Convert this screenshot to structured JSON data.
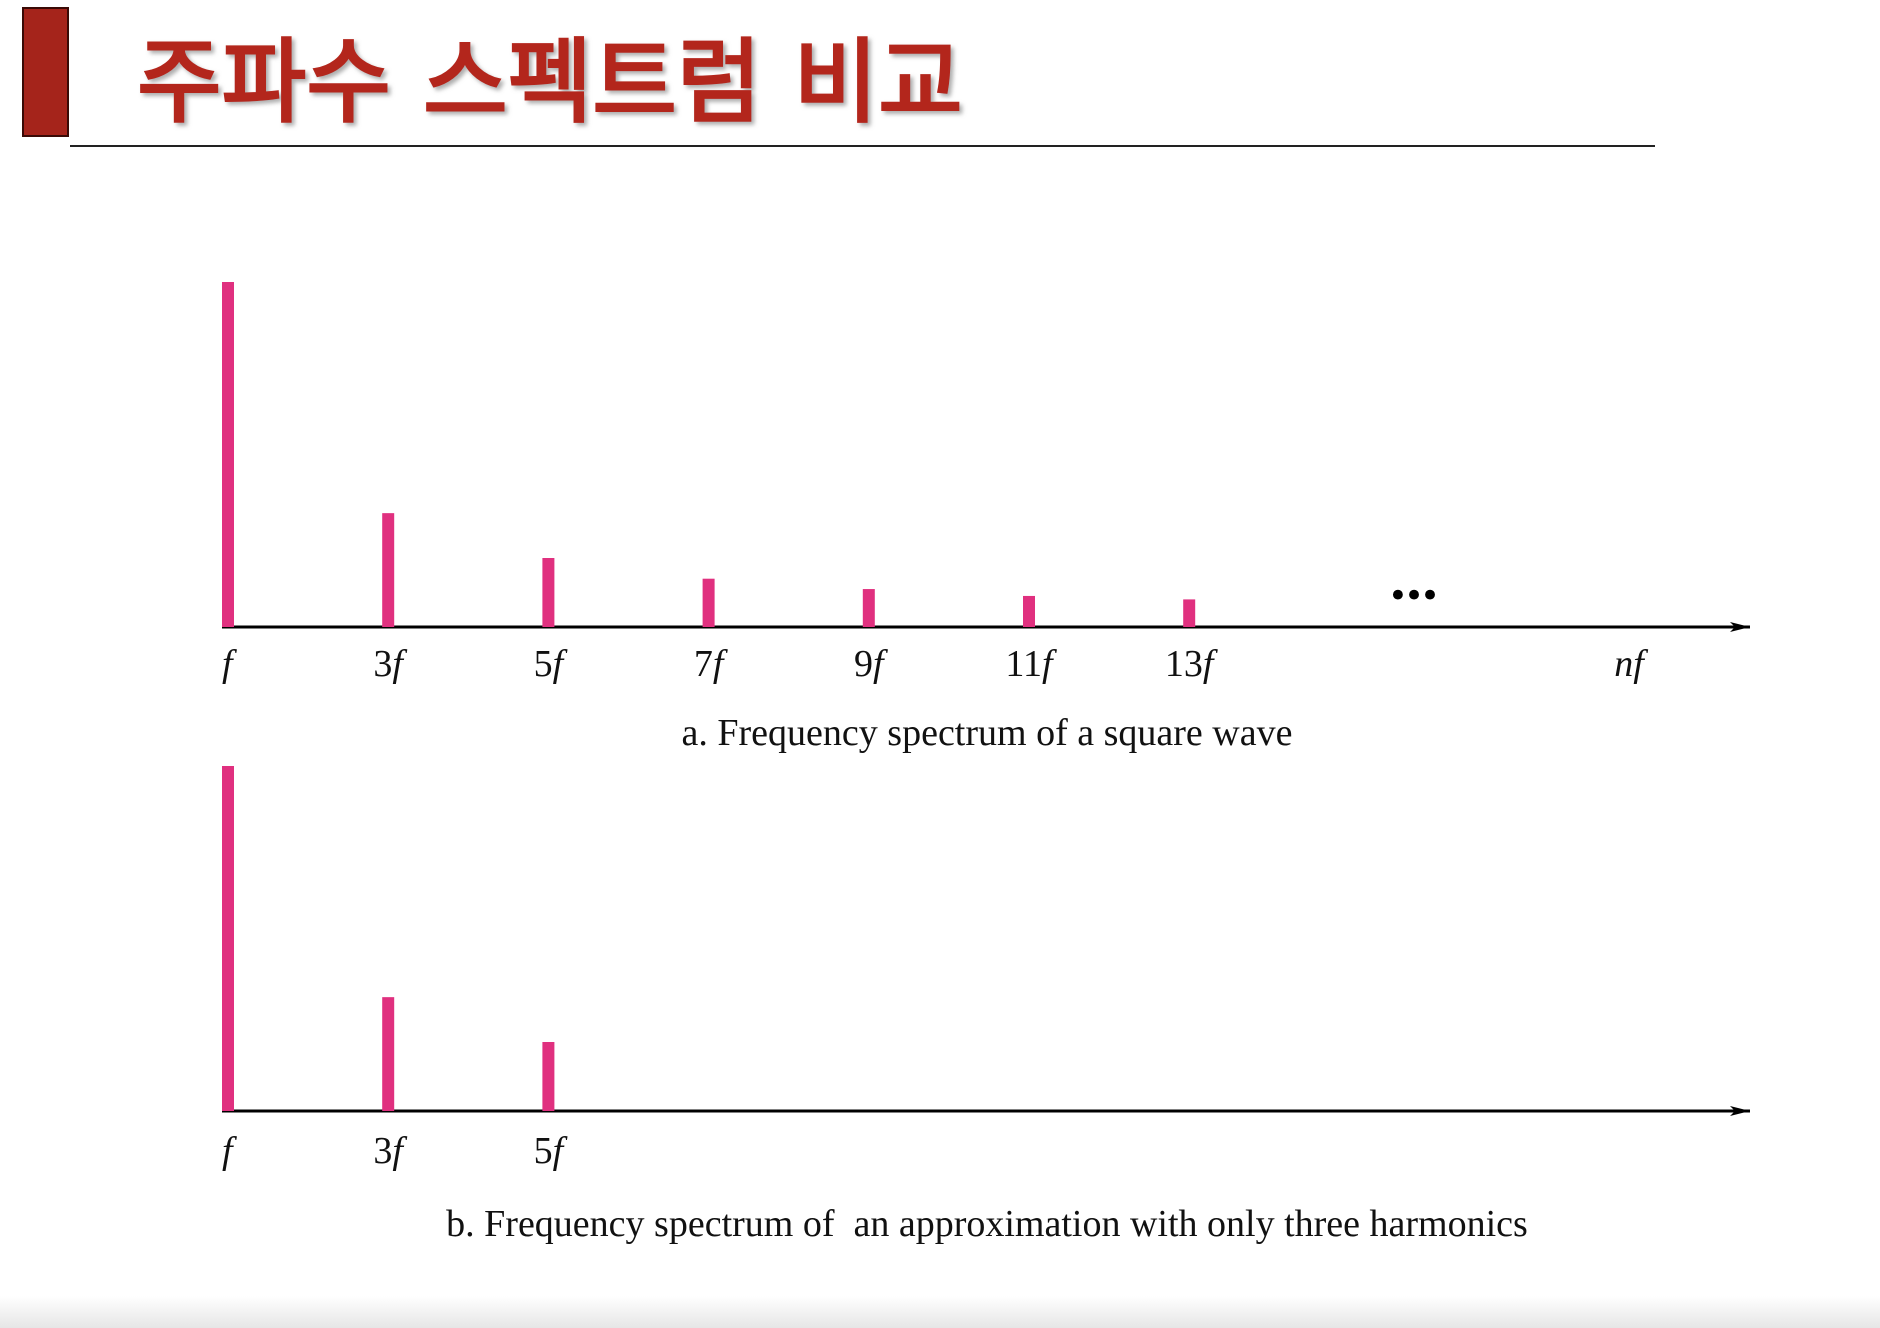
{
  "title": "주파수 스펙트럼 비교",
  "chart_data": [
    {
      "type": "bar",
      "caption": "a. Frequency spectrum of a square wave",
      "categories": [
        "f",
        "3f",
        "5f",
        "7f",
        "9f",
        "11f",
        "13f"
      ],
      "values": [
        1,
        0.33,
        0.2,
        0.14,
        0.11,
        0.09,
        0.08
      ],
      "ylim": [
        0,
        1
      ],
      "color": "#e0307f",
      "continuation": "•••",
      "axis_end_label": "nf"
    },
    {
      "type": "bar",
      "caption": "b. Frequency spectrum of  an approximation with only three harmonics",
      "categories": [
        "f",
        "3f",
        "5f"
      ],
      "values": [
        1,
        0.33,
        0.2
      ],
      "ylim": [
        0,
        1
      ],
      "color": "#e0307f"
    }
  ]
}
